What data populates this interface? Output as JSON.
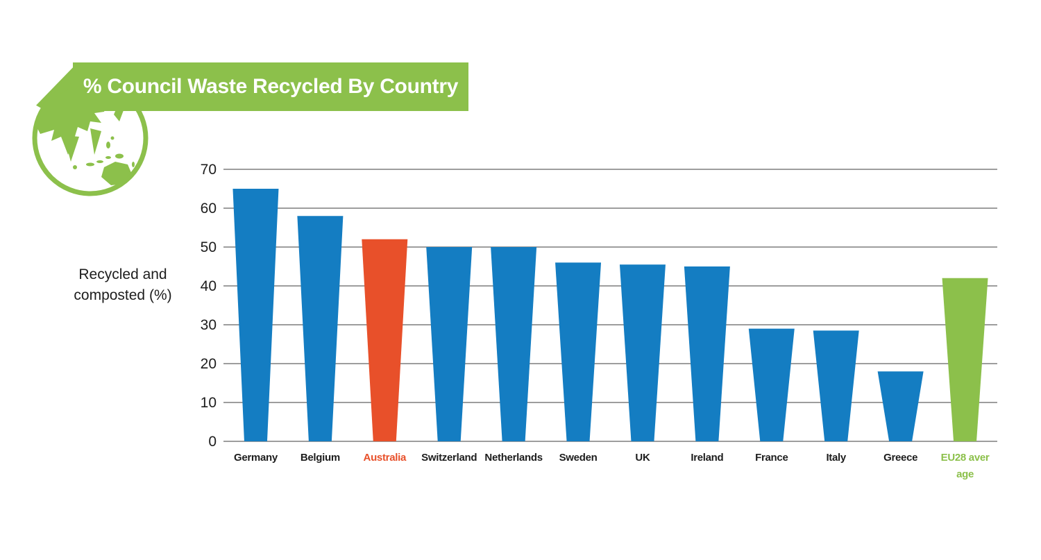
{
  "header": {
    "title": "% Council Waste Recycled By Country"
  },
  "chart_data": {
    "type": "bar",
    "title": "% Council Waste Recycled By Country",
    "ylabel": "Recycled and composted (%)",
    "ylabel_lines": [
      "Recycled and",
      "composted (%)"
    ],
    "categories": [
      "Germany",
      "Belgium",
      "Australia",
      "Switzerland",
      "Netherlands",
      "Sweden",
      "UK",
      "Ireland",
      "France",
      "Italy",
      "Greece",
      "EU28 average"
    ],
    "values": [
      65,
      58,
      52,
      50,
      50,
      46,
      45.5,
      45,
      29,
      28.5,
      18,
      42
    ],
    "bar_colors": [
      "#147dc2",
      "#147dc2",
      "#e8502a",
      "#147dc2",
      "#147dc2",
      "#147dc2",
      "#147dc2",
      "#147dc2",
      "#147dc2",
      "#147dc2",
      "#147dc2",
      "#8cc04b"
    ],
    "label_colors": [
      "#1d1d1d",
      "#1d1d1d",
      "#e8502a",
      "#1d1d1d",
      "#1d1d1d",
      "#1d1d1d",
      "#1d1d1d",
      "#1d1d1d",
      "#1d1d1d",
      "#1d1d1d",
      "#1d1d1d",
      "#8cc04b"
    ],
    "label_lines": [
      [
        "Germany"
      ],
      [
        "Belgium"
      ],
      [
        "Australia"
      ],
      [
        "Switzerland"
      ],
      [
        "Netherlands"
      ],
      [
        "Sweden"
      ],
      [
        "UK"
      ],
      [
        "Ireland"
      ],
      [
        "France"
      ],
      [
        "Italy"
      ],
      [
        "Greece"
      ],
      [
        "EU28 aver",
        "age"
      ]
    ],
    "yticks": [
      0,
      10,
      20,
      30,
      40,
      50,
      60,
      70
    ],
    "ylim": [
      0,
      70
    ],
    "grid": true,
    "legend": "none",
    "bar_shape": "trapezoid"
  },
  "colors": {
    "brand_green": "#8cc04b",
    "bar_blue": "#147dc2",
    "highlight_orange": "#e8502a",
    "grid_gray": "#7d7d7d",
    "text_dark": "#1d1d1d",
    "title_white": "#ffffff"
  }
}
